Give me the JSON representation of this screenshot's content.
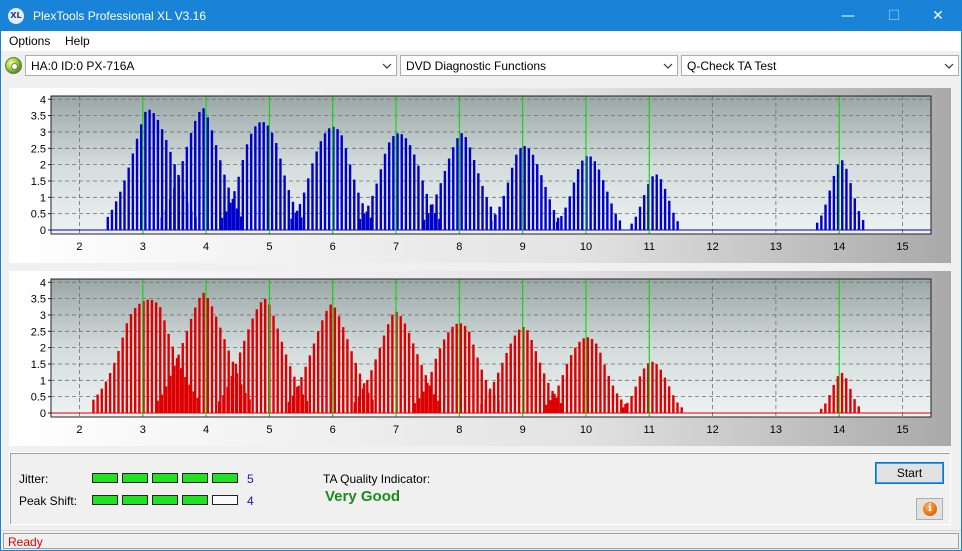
{
  "window": {
    "title": "PlexTools Professional XL V3.16",
    "icon_text": "XL",
    "minimize_glyph": "—",
    "maximize_glyph": "☐",
    "close_glyph": "✕"
  },
  "menu": {
    "options": "Options",
    "help": "Help"
  },
  "toolbar": {
    "drive": "HA:0 ID:0  PX-716A",
    "function": "DVD Diagnostic Functions",
    "test": "Q-Check TA Test"
  },
  "colors": {
    "land_bars": "#0000cc",
    "pit_bars": "#dd0000",
    "marker_lines": "#00dd00",
    "accent": "#1883d7",
    "quality_text": "#1a8c1a"
  },
  "chart_data": [
    {
      "type": "bar",
      "name": "land",
      "xlim": [
        1.55,
        15.45
      ],
      "ylim": [
        0,
        4.1
      ],
      "xticks": [
        "2",
        "3",
        "4",
        "5",
        "6",
        "7",
        "8",
        "9",
        "10",
        "11",
        "12",
        "13",
        "14",
        "15"
      ],
      "yticks": [
        "0",
        "0.5",
        "1",
        "1.5",
        "2",
        "2.5",
        "3",
        "3.5",
        "4"
      ],
      "markers": [
        3,
        4,
        5,
        6,
        7,
        8,
        9,
        10,
        11,
        14
      ],
      "grid": true,
      "peaks": [
        {
          "center": 3.14,
          "height": 3.8,
          "width": 0.33
        },
        {
          "center": 3.93,
          "height": 3.75,
          "width": 0.3
        },
        {
          "center": 4.88,
          "height": 3.6,
          "width": 0.3
        },
        {
          "center": 5.98,
          "height": 3.4,
          "width": 0.3
        },
        {
          "center": 7.06,
          "height": 3.2,
          "width": 0.3
        },
        {
          "center": 8.03,
          "height": 3.0,
          "width": 0.28
        },
        {
          "center": 9.05,
          "height": 2.75,
          "width": 0.26
        },
        {
          "center": 10.05,
          "height": 2.45,
          "width": 0.24
        },
        {
          "center": 11.1,
          "height": 1.85,
          "width": 0.18
        },
        {
          "center": 14.03,
          "height": 2.15,
          "width": 0.18
        }
      ]
    },
    {
      "type": "bar",
      "name": "pit",
      "xlim": [
        1.55,
        15.45
      ],
      "ylim": [
        0,
        4.1
      ],
      "xticks": [
        "2",
        "3",
        "4",
        "5",
        "6",
        "7",
        "8",
        "9",
        "10",
        "11",
        "12",
        "13",
        "14",
        "15"
      ],
      "yticks": [
        "0",
        "0.5",
        "1",
        "1.5",
        "2",
        "2.5",
        "3",
        "3.5",
        "4"
      ],
      "markers": [
        3,
        4,
        5,
        6,
        7,
        8,
        9,
        10,
        11,
        14
      ],
      "grid": true,
      "peaks": [
        {
          "center": 3.06,
          "height": 3.75,
          "width": 0.4
        },
        {
          "center": 3.97,
          "height": 3.7,
          "width": 0.35
        },
        {
          "center": 4.9,
          "height": 3.55,
          "width": 0.33
        },
        {
          "center": 5.98,
          "height": 3.35,
          "width": 0.32
        },
        {
          "center": 7.02,
          "height": 3.15,
          "width": 0.32
        },
        {
          "center": 7.97,
          "height": 2.95,
          "width": 0.32
        },
        {
          "center": 8.98,
          "height": 2.7,
          "width": 0.3
        },
        {
          "center": 10.0,
          "height": 2.5,
          "width": 0.3
        },
        {
          "center": 11.05,
          "height": 1.7,
          "width": 0.22
        },
        {
          "center": 14.03,
          "height": 1.25,
          "width": 0.15
        }
      ]
    }
  ],
  "results": {
    "jitter_label": "Jitter:",
    "jitter_value": "5",
    "jitter_level": 5,
    "peak_shift_label": "Peak Shift:",
    "peak_shift_value": "4",
    "peak_shift_level": 4,
    "meter_max": 5,
    "ta_label": "TA Quality Indicator:",
    "ta_value": "Very Good"
  },
  "buttons": {
    "start": "Start",
    "info_icon": "i"
  },
  "status": {
    "text": "Ready"
  }
}
